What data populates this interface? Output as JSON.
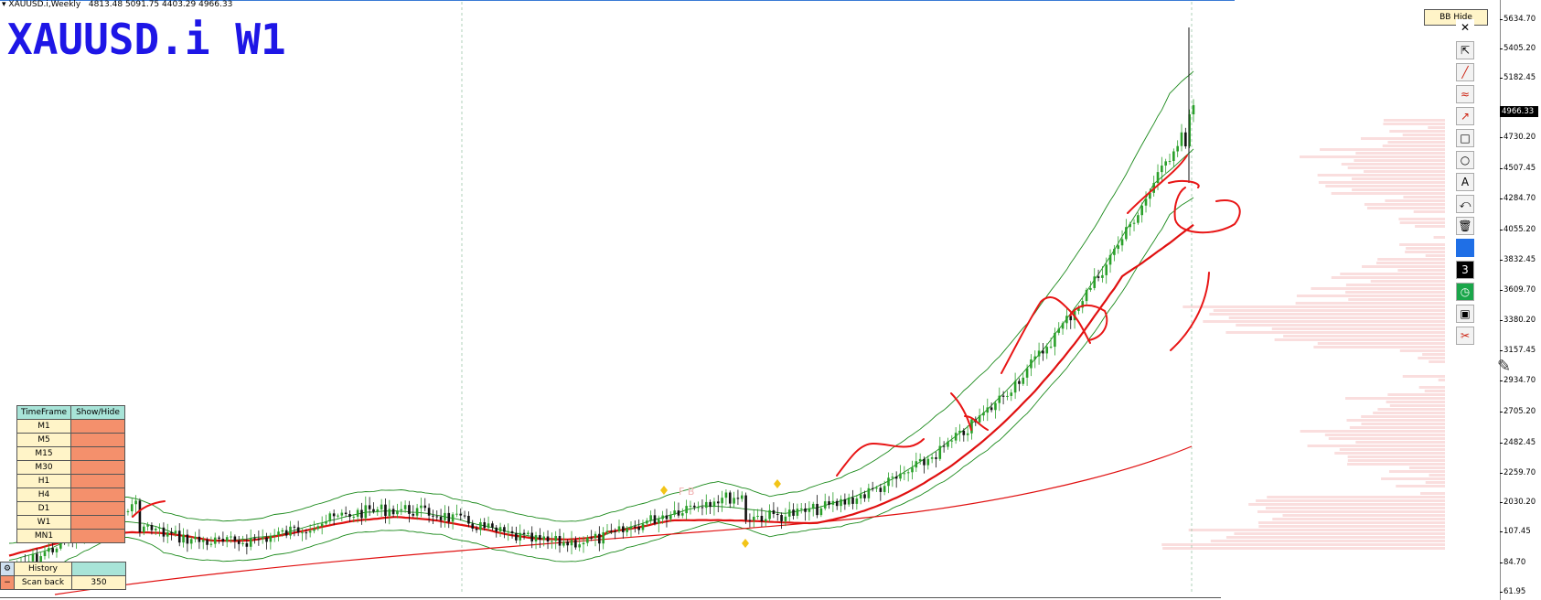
{
  "chart": {
    "symbol_info": "XAUUSD.i,Weekly",
    "ohlc": "4813.48 5091.75 4403.29 4966.33",
    "big_title": "XAUUSD.i W1",
    "current_price": "4966.33",
    "y_axis_labels": [
      "5634.70",
      "5405.20",
      "5182.45",
      "4730.20",
      "4507.45",
      "4284.70",
      "4055.20",
      "3832.45",
      "3609.70",
      "3380.20",
      "3157.45",
      "2934.70",
      "2705.20",
      "2482.45",
      "2259.70",
      "2030.20",
      "107.45",
      "84.70",
      "61.95"
    ],
    "colors": {
      "title": "#1e16e6",
      "bull": "#2aa02a",
      "bear": "#111111",
      "ma_red": "#e01010",
      "bands": "#1c8a1c"
    }
  },
  "bb_button": {
    "label": "BB Hide"
  },
  "toolbar": {
    "tools": [
      {
        "icon": "close-icon",
        "glyph": "✕"
      },
      {
        "icon": "cursor-icon",
        "glyph": "⇱"
      },
      {
        "icon": "pen-icon",
        "glyph": "╱"
      },
      {
        "icon": "wave-icon",
        "glyph": "≈"
      },
      {
        "icon": "arrow-icon",
        "glyph": "↗"
      },
      {
        "icon": "rectangle-icon",
        "glyph": "□"
      },
      {
        "icon": "circle-icon",
        "glyph": "○"
      },
      {
        "icon": "text-icon",
        "glyph": "A"
      },
      {
        "icon": "undo-icon",
        "glyph": "⤺"
      },
      {
        "icon": "trash-icon",
        "glyph": "🗑"
      },
      {
        "icon": "color-swatch-icon",
        "glyph": ""
      },
      {
        "icon": "number-3-icon",
        "glyph": "3"
      },
      {
        "icon": "clock-icon",
        "glyph": "◷"
      },
      {
        "icon": "save-icon",
        "glyph": "▣"
      },
      {
        "icon": "scissors-icon",
        "glyph": "✂"
      }
    ]
  },
  "timeframe_panel": {
    "header_col1": "TimeFrame",
    "header_col2": "Show/Hide",
    "rows": [
      "M1",
      "M5",
      "M15",
      "M30",
      "H1",
      "H4",
      "D1",
      "W1",
      "MN1"
    ],
    "history_label": "History",
    "scan_back_label": "Scan back",
    "scan_back_value": "350"
  }
}
